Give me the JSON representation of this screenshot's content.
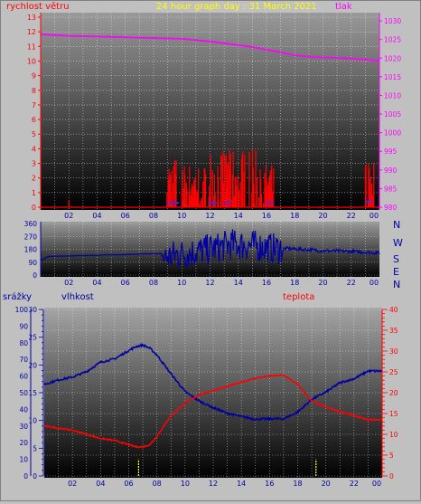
{
  "header": {
    "title": "24 hour graph day : 31 March 2021",
    "wind_label": "rychlost větru",
    "pressure_label": "tlak"
  },
  "rain_label": "srážky",
  "humidity_label": "vlhkost",
  "temperature_label": "teplota",
  "colors": {
    "wind": "#ff0000",
    "pressure": "#ff00ff",
    "direction": "#0000a0",
    "humidity": "#0000a0",
    "temperature": "#ff0000",
    "rain": "#ffff00",
    "title": "#ffff00",
    "grid": "#ffffff"
  },
  "chart_data": [
    {
      "type": "line",
      "name": "wind-pressure",
      "x_ticks": [
        "02",
        "04",
        "06",
        "08",
        "10",
        "12",
        "14",
        "16",
        "18",
        "20",
        "22",
        "00"
      ],
      "wind_axis_ticks": [
        "0",
        "1",
        "2",
        "3",
        "4",
        "5",
        "6",
        "7",
        "8",
        "9",
        "10",
        "11",
        "12",
        "13"
      ],
      "wind_ylim": [
        0,
        13
      ],
      "pressure_axis_ticks": [
        "980",
        "985",
        "990",
        "995",
        "1000",
        "1005",
        "1010",
        "1015",
        "1020",
        "1025",
        "1030"
      ],
      "pressure_ylim": [
        980,
        1031
      ],
      "pressure": {
        "x": [
          0,
          2,
          4,
          6,
          8,
          10,
          12,
          13,
          14,
          15,
          16,
          17,
          18,
          19,
          20,
          21,
          22,
          23,
          24
        ],
        "y": [
          1026.4,
          1026,
          1025.8,
          1025.6,
          1025.4,
          1025.2,
          1024.5,
          1024,
          1023.5,
          1023,
          1022.3,
          1021.6,
          1020.8,
          1020.4,
          1020.2,
          1020.1,
          1019.9,
          1019.6,
          1019.3
        ]
      },
      "wind_bursts": [
        {
          "x0": 8.9,
          "x1": 9.6,
          "max": 3.5
        },
        {
          "x0": 10.0,
          "x1": 12.0,
          "max": 3.0
        },
        {
          "x0": 12.0,
          "x1": 15.6,
          "max": 4.0
        },
        {
          "x0": 15.6,
          "x1": 16.5,
          "max": 3.0
        },
        {
          "x0": 23.0,
          "x1": 23.6,
          "max": 3.7
        }
      ],
      "wind_blue_segments": [
        {
          "x0": 9.0,
          "x1": 9.8,
          "y": 0.3
        },
        {
          "x0": 11.9,
          "x1": 12.5,
          "y": 0.3
        },
        {
          "x0": 13.0,
          "x1": 13.5,
          "y": 0.3
        },
        {
          "x0": 16.0,
          "x1": 16.5,
          "y": 0.3
        },
        {
          "x0": 23.0,
          "x1": 23.5,
          "y": 0.4
        }
      ]
    },
    {
      "type": "line",
      "name": "wind-direction",
      "x_ticks": [
        "02",
        "04",
        "06",
        "08",
        "10",
        "12",
        "14",
        "16",
        "18",
        "20",
        "22",
        "00"
      ],
      "y_ticks": [
        "0",
        "90",
        "180",
        "270",
        "360"
      ],
      "ylim": [
        0,
        360
      ],
      "compass_labels": [
        "N",
        "W",
        "S",
        "E",
        "N"
      ],
      "direction": {
        "x": [
          0,
          0.5,
          4.5,
          8.5,
          8.7,
          9.5,
          10.5,
          11.5,
          12.5,
          13.5,
          14.5,
          15.5,
          16.5,
          17.5,
          18.5,
          20,
          22,
          23,
          24
        ],
        "y": [
          100,
          130,
          140,
          150,
          120,
          140,
          155,
          170,
          190,
          215,
          210,
          200,
          185,
          185,
          180,
          170,
          165,
          160,
          155
        ]
      }
    },
    {
      "type": "line",
      "name": "humidity-temperature",
      "x_ticks": [
        "02",
        "04",
        "06",
        "08",
        "10",
        "12",
        "14",
        "16",
        "18",
        "20",
        "22",
        "00"
      ],
      "rain_axis_ticks": [
        "0",
        "10",
        "20",
        "30",
        "40",
        "50",
        "60",
        "70",
        "80",
        "90",
        "100"
      ],
      "humidity_axis_ticks": [
        "0",
        "5",
        "10",
        "15",
        "20",
        "25",
        "30"
      ],
      "temperature_axis_ticks": [
        "0",
        "5",
        "10",
        "15",
        "20",
        "25",
        "30",
        "35",
        "40"
      ],
      "humidity_ylim": [
        0,
        30
      ],
      "temperature_ylim": [
        0,
        40
      ],
      "humidity": {
        "x": [
          0,
          1,
          2,
          3,
          4,
          5,
          6,
          6.5,
          7,
          7.5,
          8,
          9,
          10,
          11,
          12,
          13,
          14,
          15,
          16,
          17,
          18,
          19,
          20,
          21,
          22,
          23,
          24
        ],
        "y": [
          16.5,
          17.3,
          17.8,
          18.8,
          20.5,
          21.1,
          22.6,
          23.3,
          23.6,
          23.0,
          21.8,
          18.4,
          15.2,
          13.5,
          12.3,
          11.3,
          10.7,
          10.2,
          10.3,
          10.3,
          11.5,
          13.8,
          15.1,
          16.8,
          17.5,
          18.9,
          18.9
        ]
      },
      "temperature": {
        "x": [
          0,
          1,
          2,
          3,
          4,
          5,
          6,
          6.5,
          7,
          7.5,
          8,
          9,
          10,
          11,
          12,
          13,
          14,
          15,
          16,
          17,
          18,
          19,
          20,
          21,
          22,
          23,
          24
        ],
        "y": [
          12.0,
          11.5,
          11.0,
          10.0,
          9.0,
          8.5,
          7.5,
          7.0,
          7.0,
          7.5,
          9.5,
          14.5,
          17.5,
          19.5,
          20.5,
          21.5,
          22.5,
          23.5,
          24.0,
          24.2,
          22.0,
          18.0,
          16.5,
          15.5,
          14.5,
          13.5,
          13.5
        ]
      },
      "rain_marks": [
        6.7,
        19.3
      ]
    }
  ]
}
